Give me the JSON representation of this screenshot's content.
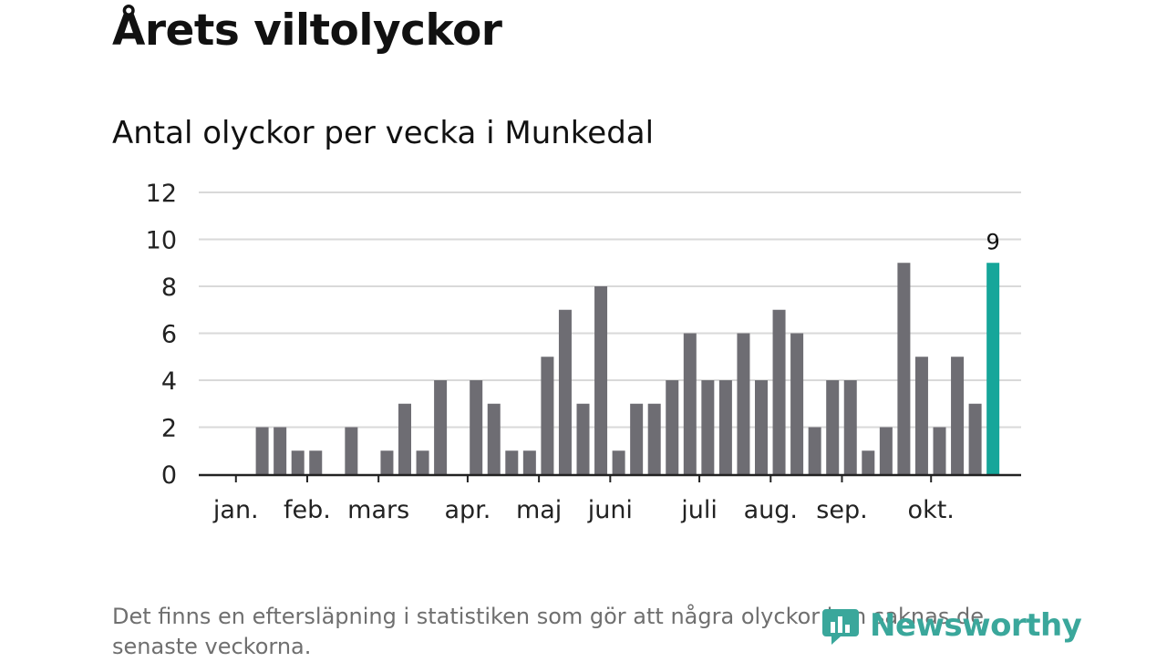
{
  "header": {
    "title": "Årets viltolyckor",
    "subtitle": "Antal olyckor per vecka i Munkedal"
  },
  "chart_data": {
    "type": "bar",
    "title": "Årets viltolyckor",
    "subtitle": "Antal olyckor per vecka i Munkedal",
    "xlabel": "",
    "ylabel": "",
    "ylim": [
      0,
      12
    ],
    "yticks": [
      0,
      2,
      4,
      6,
      8,
      10,
      12
    ],
    "grid": true,
    "values": [
      0,
      0,
      2,
      2,
      1,
      1,
      0,
      2,
      0,
      1,
      3,
      1,
      4,
      0,
      4,
      3,
      1,
      1,
      5,
      7,
      3,
      8,
      1,
      3,
      3,
      4,
      6,
      4,
      4,
      6,
      4,
      7,
      6,
      2,
      4,
      4,
      1,
      2,
      9,
      5,
      2,
      5,
      3,
      9
    ],
    "month_ticks": [
      {
        "label": "jan.",
        "week": 1
      },
      {
        "label": "feb.",
        "week": 5
      },
      {
        "label": "mars",
        "week": 9
      },
      {
        "label": "apr.",
        "week": 14
      },
      {
        "label": "maj",
        "week": 18
      },
      {
        "label": "juni",
        "week": 22
      },
      {
        "label": "juli",
        "week": 27
      },
      {
        "label": "aug.",
        "week": 31
      },
      {
        "label": "sep.",
        "week": 35
      },
      {
        "label": "okt.",
        "week": 40
      }
    ],
    "highlight": {
      "index": 43,
      "label": "9",
      "color": "#16a69a"
    },
    "bar_color": "#6e6d73"
  },
  "footnote": "Det finns en eftersläpning i statistiken som gör att några olyckor kan saknas de senaste veckorna.",
  "brand": {
    "name": "Newsworthy",
    "icon": "newsworthy-logo-icon",
    "color": "#3aa79b"
  }
}
